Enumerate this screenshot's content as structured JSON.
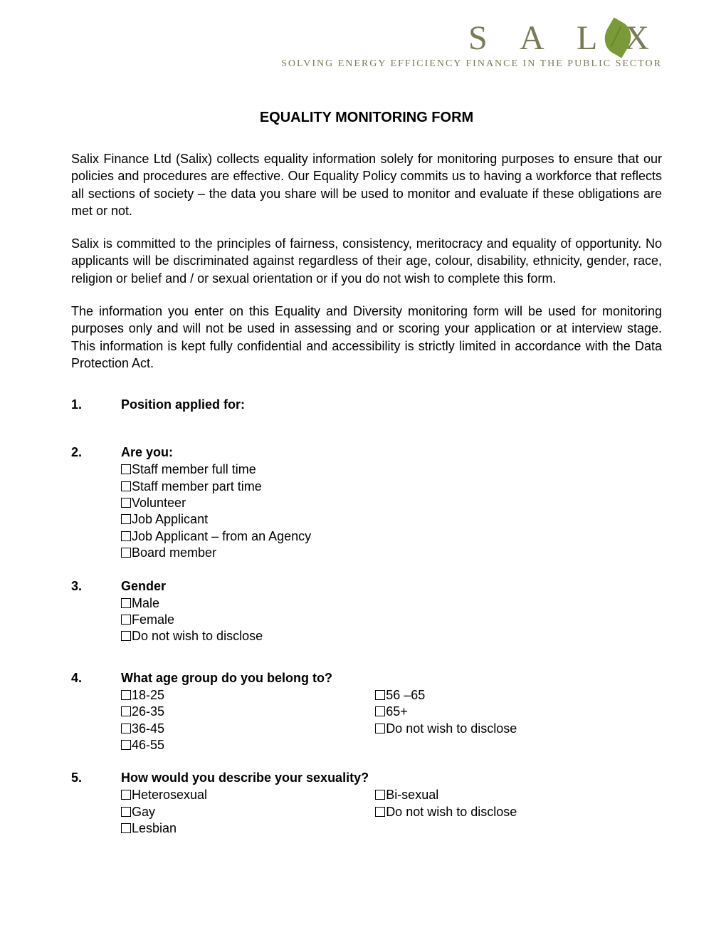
{
  "logo": {
    "text_left": "S A L",
    "text_right": "X"
  },
  "tagline": "SOLVING ENERGY EFFICIENCY FINANCE IN THE PUBLIC SECTOR",
  "title": "EQUALITY MONITORING FORM",
  "intro": {
    "p1": "Salix Finance Ltd (Salix) collects equality information solely for monitoring purposes to ensure that our policies and procedures are effective. Our Equality Policy commits us to having a workforce that reflects all sections of society  – the data you share will be used to monitor and evaluate if these obligations are met or not.",
    "p2": "Salix is committed to the principles of fairness, consistency, meritocracy and equality of opportunity. No applicants will be discriminated against regardless of their age, colour, disability, ethnicity, gender, race, religion or belief and / or sexual orientation or if you do not wish to complete this form.",
    "p3": "The information you enter on this Equality and Diversity monitoring form will be used for monitoring purposes only and will not be used in assessing and or scoring your application or at interview stage. This information is kept fully confidential and accessibility is strictly limited in accordance with the Data Protection Act."
  },
  "q1": {
    "num": "1.",
    "label": "Position applied for:"
  },
  "q2": {
    "num": "2.",
    "label": "Are you:",
    "options": [
      "Staff member full time",
      "Staff member part time",
      "Volunteer",
      "Job Applicant",
      "Job Applicant – from an Agency",
      "Board member"
    ]
  },
  "q3": {
    "num": "3.",
    "label": "Gender",
    "options": [
      "Male",
      "Female",
      "Do not wish to disclose"
    ]
  },
  "q4": {
    "num": "4.",
    "label": "What age group do you belong to?",
    "col1": [
      "18-25",
      "26-35",
      "36-45",
      "46-55"
    ],
    "col2": [
      "56 –65",
      "65+",
      "Do not wish to disclose"
    ]
  },
  "q5": {
    "num": "5.",
    "label": "How would you describe your sexuality?",
    "col1": [
      "Heterosexual",
      "Gay",
      "Lesbian"
    ],
    "col2": [
      "Bi-sexual",
      "Do not wish to disclose"
    ]
  }
}
